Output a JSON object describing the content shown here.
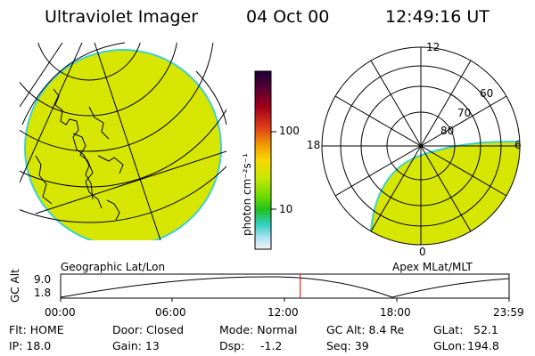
{
  "header": {
    "title": "Ultraviolet Imager",
    "date": "04 Oct 00",
    "time": "12:49:16 UT"
  },
  "colors": {
    "auroral_fill": "#d7e600",
    "edge": "#3fd0d0"
  },
  "colorbar": {
    "label": "photon cm⁻²s⁻¹",
    "ticks": [
      "100",
      "10"
    ],
    "stops": [
      "#1a0033",
      "#5a0032",
      "#a0001a",
      "#d8301a",
      "#f0a000",
      "#f8d800",
      "#c8e800",
      "#78e000",
      "#20c020",
      "#30d0c0",
      "#a0e0f0",
      "#f4f4f4"
    ]
  },
  "geo_panel": {
    "label": "Geographic Lat/Lon"
  },
  "mag_panel": {
    "label": "Apex MLat/MLT",
    "mlt_labels": {
      "top": "12",
      "left": "18",
      "right": "6",
      "bottom": "0"
    },
    "lat_labels": [
      "60",
      "70",
      "80"
    ]
  },
  "orbit": {
    "axis_label": "GC Alt",
    "y_ticks": [
      "9.0",
      "1.8"
    ],
    "x_ticks": [
      "00:00",
      "06:00",
      "12:00",
      "18:00",
      "23:59"
    ],
    "current_time_hours": 12.82,
    "marker_color": "#e00000"
  },
  "footer": {
    "flt": "Flt: HOME",
    "door": "Door: Closed",
    "mode": "Mode: Normal",
    "gc_alt": "GC Alt: 8.4 Re",
    "glat_label": "GLat:",
    "glat_value": "52.1",
    "ip": "IP: 18.0",
    "gain": "Gain: 13",
    "dsp_label": "Dsp:",
    "dsp_value": "-1.2",
    "seq": "Seq: 39",
    "glon_label": "GLon:",
    "glon_value": "194.8"
  }
}
